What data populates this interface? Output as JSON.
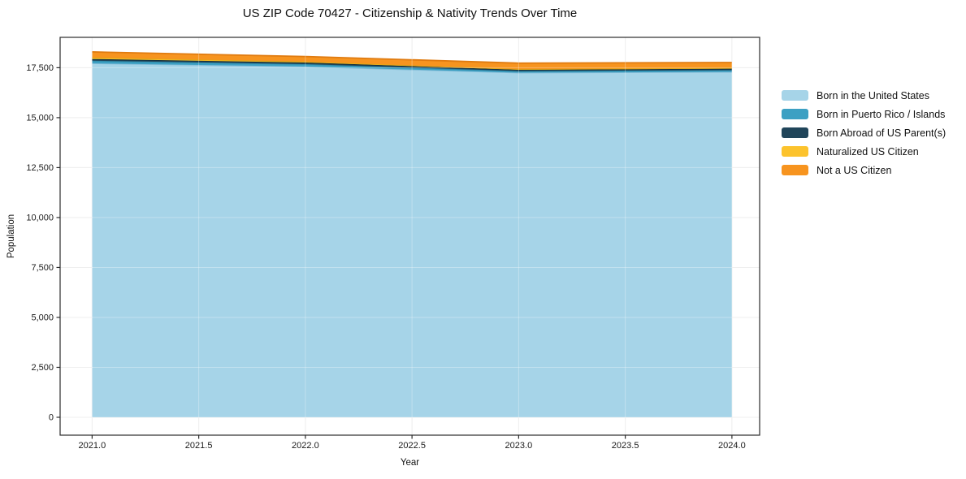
{
  "title": "US ZIP Code 70427 - Citizenship & Nativity Trends Over Time",
  "chart_data": {
    "type": "area",
    "stacked": true,
    "title": "US ZIP Code 70427 - Citizenship & Nativity Trends Over Time",
    "xlabel": "Year",
    "ylabel": "Population",
    "x": [
      2021,
      2022,
      2023,
      2024
    ],
    "series": [
      {
        "id": "born-us",
        "name": "Born in the United States",
        "color": "#a6d4e8",
        "line": "#85bdd8",
        "values": [
          17720,
          17560,
          17250,
          17290
        ]
      },
      {
        "id": "puerto-rico",
        "name": "Born in Puerto Rico / Islands",
        "color": "#3ca0c3",
        "line": "#2f89a8",
        "values": [
          130,
          120,
          80,
          85
        ]
      },
      {
        "id": "born-abroad",
        "name": "Born Abroad of US Parent(s)",
        "color": "#20455a",
        "line": "#16303d",
        "values": [
          85,
          80,
          70,
          75
        ]
      },
      {
        "id": "naturalized",
        "name": "Naturalized US Citizen",
        "color": "#fcc32d",
        "line": "#e3a714",
        "values": [
          75,
          50,
          30,
          40
        ]
      },
      {
        "id": "not-citizen",
        "name": "Not a US Citizen",
        "color": "#f7941f",
        "line": "#e07b10",
        "values": [
          280,
          250,
          300,
          270
        ]
      }
    ],
    "xlim": [
      2020.85,
      2024.13
    ],
    "ylim": [
      -895,
      19020
    ],
    "xticks": [
      2021.0,
      2021.5,
      2022.0,
      2022.5,
      2023.0,
      2023.5,
      2024.0
    ],
    "xtick_labels": [
      "2021.0",
      "2021.5",
      "2022.0",
      "2022.5",
      "2023.0",
      "2023.5",
      "2024.0"
    ],
    "yticks": [
      0,
      2500,
      5000,
      7500,
      10000,
      12500,
      15000,
      17500
    ],
    "ytick_labels": [
      "0",
      "2,500",
      "5,000",
      "7,500",
      "10,000",
      "12,500",
      "15,000",
      "17,500"
    ],
    "grid": true,
    "legend_position": "right",
    "colors": {
      "grid_under": "#e9e9e9",
      "grid_over": "rgba(255,255,255,0.30)",
      "axis": "#2b2b2b",
      "background": "#ffffff"
    }
  }
}
